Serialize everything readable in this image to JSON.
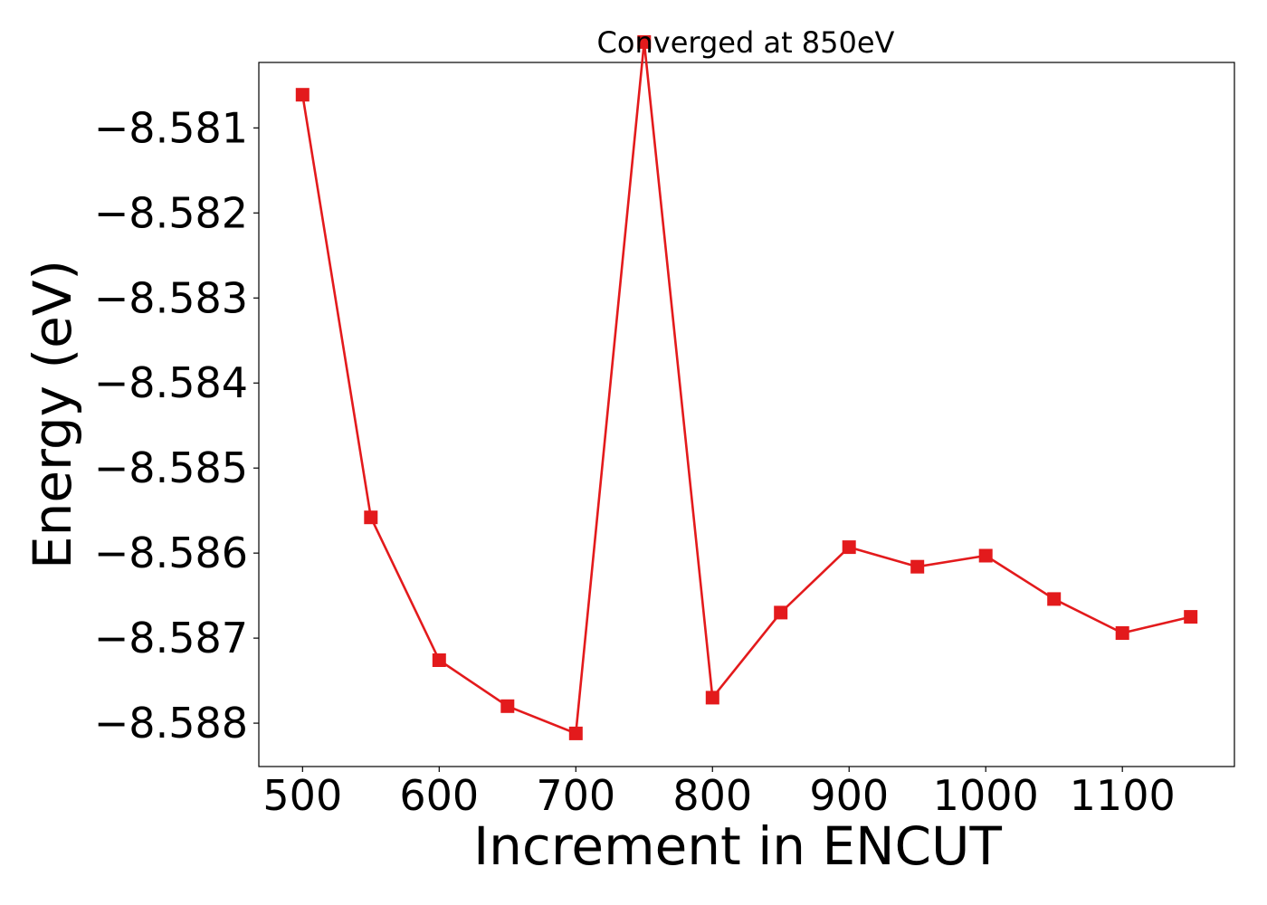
{
  "chart_data": {
    "type": "line",
    "title": "Converged at 850eV",
    "xlabel": "Increment in ENCUT",
    "ylabel": "Energy (eV)",
    "x": [
      500,
      550,
      600,
      650,
      700,
      750,
      800,
      850,
      900,
      950,
      1000,
      1050,
      1100,
      1150
    ],
    "series": [
      {
        "name": "",
        "values": [
          -8.58061,
          -8.58558,
          -8.58726,
          -8.5878,
          -8.58812,
          -8.57999,
          -8.5877,
          -8.5867,
          -8.58593,
          -8.58616,
          -8.58603,
          -8.58654,
          -8.58694,
          -8.58675
        ],
        "color": "#e31a1c",
        "marker": "square"
      }
    ],
    "xlim": [
      468,
      1182
    ],
    "ylim": [
      -8.58851,
      -8.58023
    ],
    "xticks": [
      500,
      600,
      700,
      800,
      900,
      1000,
      1100
    ],
    "xtick_labels": [
      "500",
      "600",
      "700",
      "800",
      "900",
      "1000",
      "1100"
    ],
    "yticks": [
      -8.581,
      -8.582,
      -8.583,
      -8.584,
      -8.585,
      -8.586,
      -8.587,
      -8.588
    ],
    "ytick_labels": [
      "−8.581",
      "−8.582",
      "−8.583",
      "−8.584",
      "−8.585",
      "−8.586",
      "−8.587",
      "−8.588"
    ],
    "grid": false,
    "legend": "none"
  }
}
